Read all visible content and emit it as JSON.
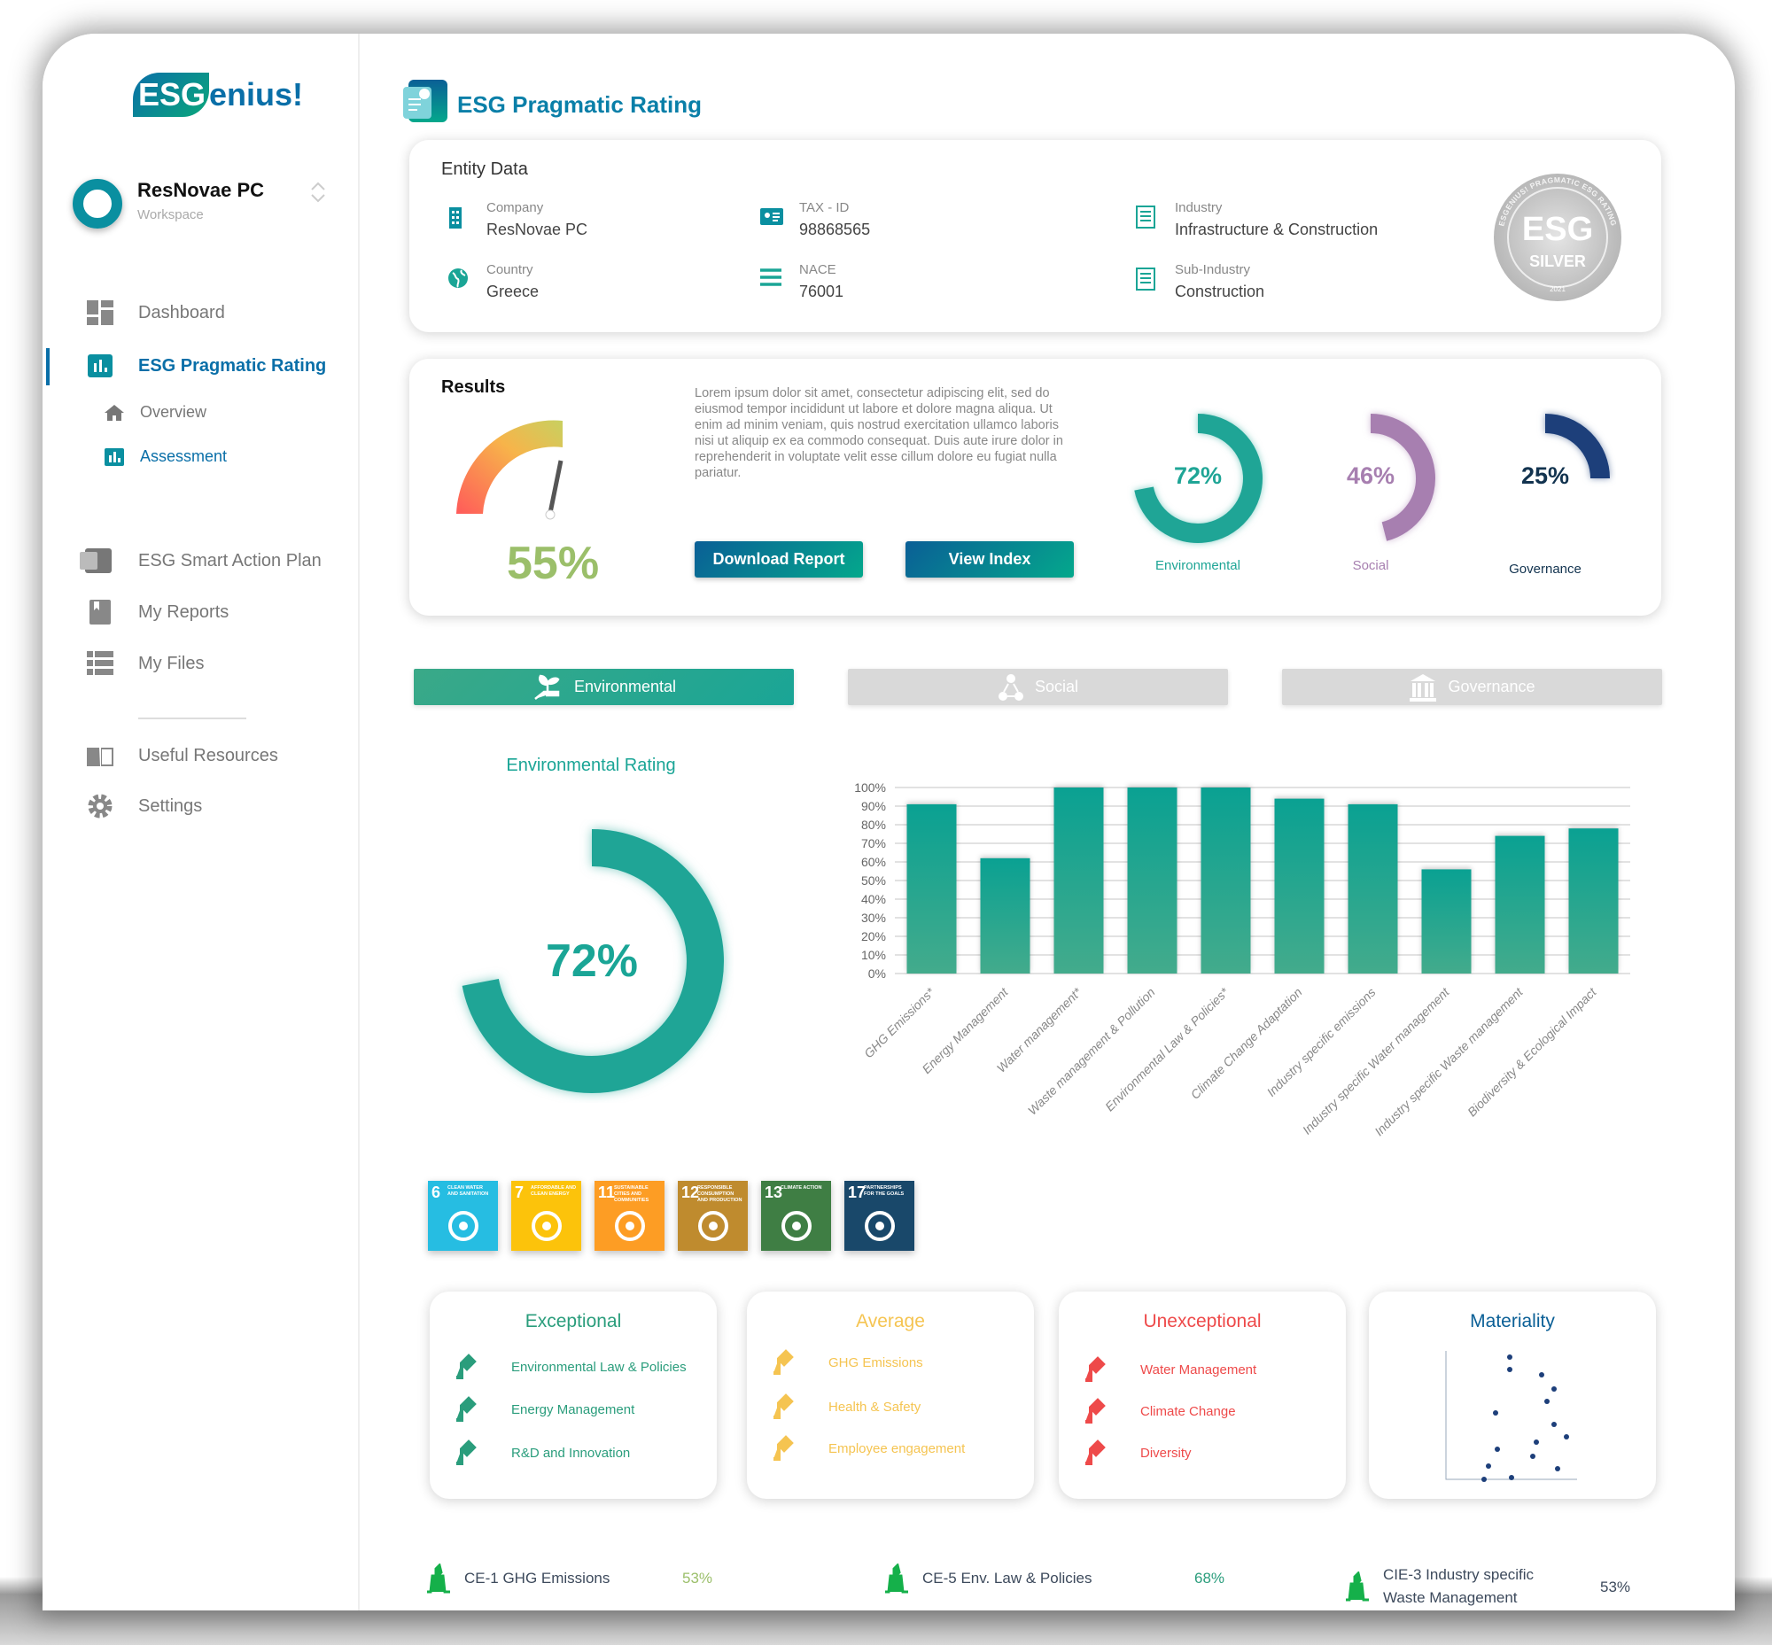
{
  "app": {
    "logo_text": "ESGenius!",
    "logo_part1": "ESG",
    "logo_part2": "enius!"
  },
  "workspace": {
    "name": "ResNovae PC",
    "subtitle": "Workspace"
  },
  "sidebar": {
    "items": [
      {
        "label": "Dashboard",
        "icon": "dashboard-icon"
      },
      {
        "label": "ESG Pragmatic Rating",
        "icon": "bar-chart-icon",
        "active": true
      },
      {
        "label": "Overview",
        "icon": "home-icon"
      },
      {
        "label": "Assessment",
        "icon": "bar-chart-icon",
        "active": true
      },
      {
        "label": "ESG Smart Action Plan",
        "icon": "action-plan-icon"
      },
      {
        "label": "My Reports",
        "icon": "report-icon"
      },
      {
        "label": "My Files",
        "icon": "list-icon"
      },
      {
        "label": "Useful Resources",
        "icon": "book-icon"
      },
      {
        "label": "Settings",
        "icon": "gear-icon"
      }
    ]
  },
  "header": {
    "title": "ESG Pragmatic Rating"
  },
  "entity": {
    "title": "Entity Data",
    "fields": [
      {
        "label": "Company",
        "value": "ResNovae PC",
        "icon": "building-icon"
      },
      {
        "label": "TAX - ID",
        "value": "98868565",
        "icon": "id-card-icon"
      },
      {
        "label": "Industry",
        "value": "Infrastructure & Construction",
        "icon": "document-icon"
      },
      {
        "label": "Country",
        "value": "Greece",
        "icon": "globe-icon"
      },
      {
        "label": "NACE",
        "value": "76001",
        "icon": "menu-icon"
      },
      {
        "label": "Sub-Industry",
        "value": "Construction",
        "icon": "document-icon"
      }
    ],
    "badge": {
      "main": "ESG",
      "level": "SILVER",
      "year": "2021",
      "ring": "ESGENIUS! PRAGMATIC ESG RATING"
    }
  },
  "results": {
    "title": "Results",
    "overall": "55%",
    "overall_value": 55,
    "description": "Lorem ipsum dolor sit amet, consectetur adipiscing elit, sed do eiusmod tempor incididunt ut labore et dolore magna aliqua. Ut enim ad minim veniam, quis nostrud exercitation ullamco laboris nisi ut aliquip ex ea commodo consequat. Duis aute irure dolor in reprehenderit in voluptate velit esse cillum dolore eu fugiat nulla pariatur.",
    "download_label": "Download Report",
    "view_label": "View Index",
    "pillars": [
      {
        "label": "Environmental",
        "text": "72%",
        "value": 72,
        "color": "#1fa596"
      },
      {
        "label": "Social",
        "text": "46%",
        "value": 46,
        "color": "#a77fb0"
      },
      {
        "label": "Governance",
        "text": "25%",
        "value": 25,
        "color": "#1d3f7a"
      }
    ]
  },
  "tabs": [
    {
      "label": "Environmental",
      "icon": "plant-hand-icon",
      "active": true
    },
    {
      "label": "Social",
      "icon": "people-network-icon"
    },
    {
      "label": "Governance",
      "icon": "institution-icon"
    }
  ],
  "env_rating": {
    "title": "Environmental Rating",
    "text": "72%",
    "value": 72
  },
  "chart_data": {
    "type": "bar",
    "categories": [
      "GHG Emissions*",
      "Energy Management",
      "Water management*",
      "Waste management & Pollution",
      "Environmental Law & Policies*",
      "Climate Change Adaptation",
      "Industry specific emissions",
      "Industry specific Water management",
      "Industry specific Waste management",
      "Biodiversity & Ecological Impact"
    ],
    "values": [
      91,
      62,
      100,
      100,
      100,
      94,
      91,
      56,
      74,
      78
    ],
    "yticks": [
      "0%",
      "10%",
      "20%",
      "30%",
      "40%",
      "50%",
      "60%",
      "70%",
      "80%",
      "90%",
      "100%"
    ],
    "ylim": [
      0,
      100
    ],
    "grid": true,
    "color": "#1fa596"
  },
  "sdgs": [
    {
      "num": "6",
      "title": "CLEAN WATER AND SANITATION",
      "color": "#26bde2"
    },
    {
      "num": "7",
      "title": "AFFORDABLE AND CLEAN ENERGY",
      "color": "#fcc30b"
    },
    {
      "num": "11",
      "title": "SUSTAINABLE CITIES AND COMMUNITIES",
      "color": "#fd9d24"
    },
    {
      "num": "12",
      "title": "RESPONSIBLE CONSUMPTION AND PRODUCTION",
      "color": "#bf8b2e"
    },
    {
      "num": "13",
      "title": "CLIMATE ACTION",
      "color": "#3f7e44"
    },
    {
      "num": "17",
      "title": "PARTNERSHIPS FOR THE GOALS",
      "color": "#19486a"
    }
  ],
  "categories": [
    {
      "title": "Exceptional",
      "color": "#2a9d7c",
      "items": [
        {
          "label": "Environmental Law & Policies",
          "icon": "gavel-icon"
        },
        {
          "label": "Energy Management",
          "icon": "energy-leaf-icon"
        },
        {
          "label": "R&D and Innovation",
          "icon": "test-tube-icon"
        }
      ]
    },
    {
      "title": "Average",
      "color": "#f5c451",
      "items": [
        {
          "label": "GHG Emissions",
          "icon": "factory-icon"
        },
        {
          "label": "Health & Safety",
          "icon": "worker-icon"
        },
        {
          "label": "Employee engagement",
          "icon": "employee-icon"
        }
      ]
    },
    {
      "title": "Unexceptional",
      "color": "#ee4a4a",
      "items": [
        {
          "label": "Water Management",
          "icon": "faucet-icon"
        },
        {
          "label": "Climate Change",
          "icon": "globe-icon"
        },
        {
          "label": "Diversity",
          "icon": "person-icon"
        }
      ]
    },
    {
      "title": "Materiality",
      "color": "#0a5f96"
    }
  ],
  "bottom": [
    {
      "label": "CE-1 GHG Emissions",
      "value": "53%",
      "icon": "factory-icon",
      "color": "#9bbf6a"
    },
    {
      "label": "CE-5 Env. Law & Policies",
      "value": "68%",
      "icon": "gavel-icon",
      "color": "#2a9d7c"
    },
    {
      "label": "CIE-3 Industry specific",
      "label2": "Waste Management",
      "value": "53%",
      "icon": "trash-icon",
      "color": "#3d4a5c"
    }
  ]
}
